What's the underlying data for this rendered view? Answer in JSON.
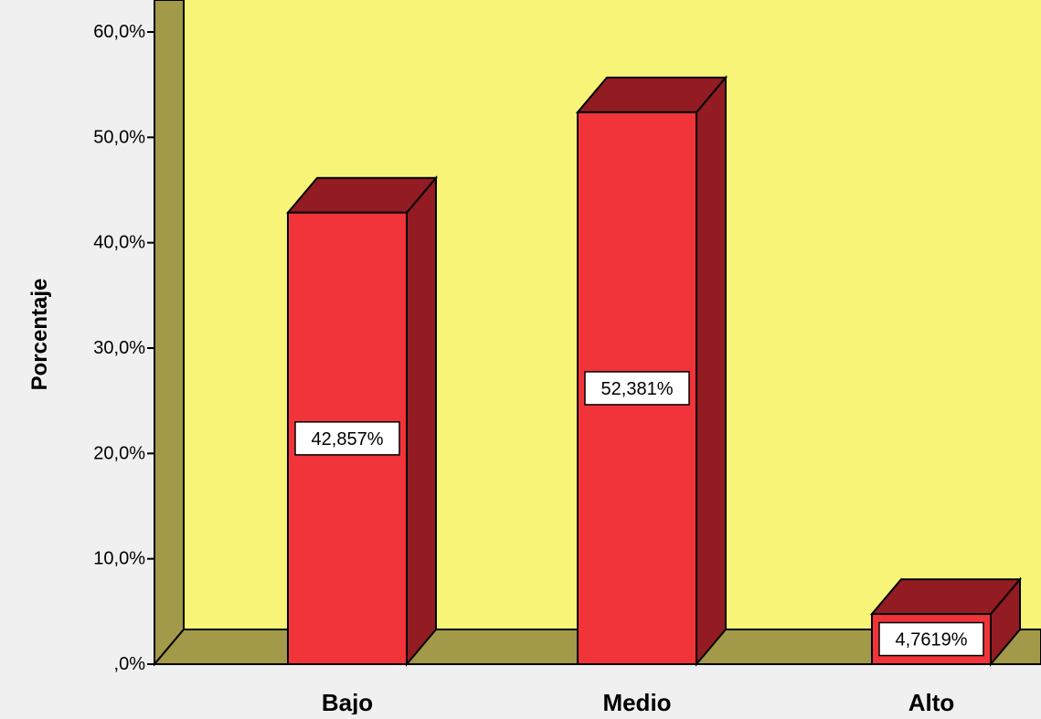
{
  "chart_data": {
    "type": "bar",
    "categories": [
      "Bajo",
      "Medio",
      "Alto"
    ],
    "values": [
      42.857,
      52.381,
      4.7619
    ],
    "value_labels": [
      "42,857%",
      "52,381%",
      "4,7619%"
    ],
    "ylabel": "Porcentaje",
    "xlabel": "",
    "ylim": [
      0,
      60
    ],
    "yticks": [
      0,
      10,
      20,
      30,
      40,
      50,
      60
    ],
    "ytick_labels": [
      ",0%",
      "10,0%",
      "20,0%",
      "30,0%",
      "40,0%",
      "50,0%",
      "60,0%"
    ],
    "style": "3d",
    "colors": {
      "background": "#f0f0f0",
      "plot_area": "#f8f478",
      "walls": "#a29a48",
      "bar_front": "#f0343a",
      "bar_side": "#921c22",
      "outline": "#000000"
    }
  }
}
